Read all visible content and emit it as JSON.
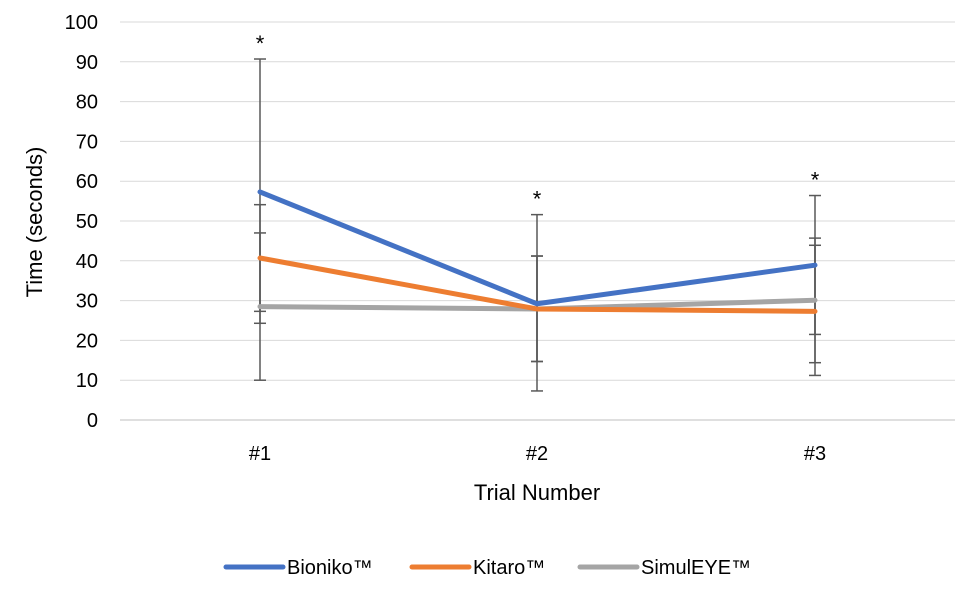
{
  "chart_data": {
    "type": "line",
    "title": "",
    "xlabel": "Trial Number",
    "ylabel": "Time (seconds)",
    "ylim": [
      0,
      100
    ],
    "yticks": [
      0,
      10,
      20,
      30,
      40,
      50,
      60,
      70,
      80,
      90,
      100
    ],
    "categories": [
      "#1",
      "#2",
      "#3"
    ],
    "grid": "horizontal",
    "legend_position": "bottom",
    "series": [
      {
        "name": "Bioniko™",
        "color": "#4472C4",
        "values": [
          57.3,
          29.2,
          38.9
        ],
        "error_low": [
          24.3,
          7.3,
          21.5
        ],
        "error_high": [
          90.7,
          51.6,
          56.4
        ]
      },
      {
        "name": "Kitaro™",
        "color": "#ED7D31",
        "values": [
          40.7,
          27.9,
          27.3
        ],
        "error_low": [
          27.3,
          14.7,
          11.2
        ],
        "error_high": [
          54.1,
          41.2,
          43.9
        ]
      },
      {
        "name": "SimulEYE™",
        "color": "#A5A5A5",
        "values": [
          28.5,
          27.9,
          30.1
        ],
        "error_low": [
          10.0,
          14.7,
          14.4
        ],
        "error_high": [
          47.0,
          41.2,
          45.7
        ]
      }
    ],
    "annotations": [
      "*",
      "*",
      "*"
    ]
  }
}
